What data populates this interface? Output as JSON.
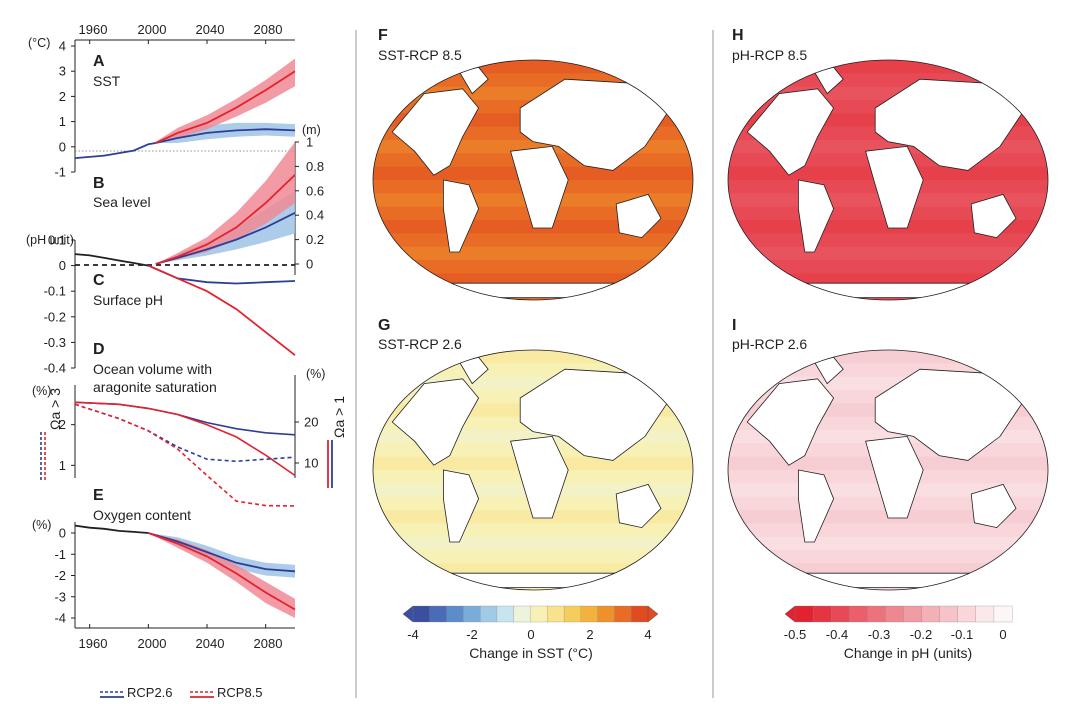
{
  "chart_data": [
    {
      "panel": "A",
      "type": "line",
      "title": "SST",
      "ylabel": "(°C)",
      "ylim": [
        -1,
        4
      ],
      "yticks": [
        -1,
        0,
        1,
        2,
        3,
        4
      ],
      "xlim": [
        1950,
        2100
      ],
      "xticks": [
        1960,
        2000,
        2040,
        2080
      ],
      "historical": {
        "x": [
          1950,
          1960,
          1970,
          1980,
          1990,
          2000,
          2005
        ],
        "y": [
          -0.45,
          -0.4,
          -0.35,
          -0.25,
          -0.15,
          0.1,
          0.15
        ]
      },
      "series": [
        {
          "name": "RCP2.6",
          "color": "#2e3e97",
          "x": [
            2005,
            2020,
            2040,
            2060,
            2080,
            2100
          ],
          "y": [
            0.15,
            0.35,
            0.55,
            0.65,
            0.7,
            0.65
          ],
          "lo": [
            0.15,
            0.15,
            0.3,
            0.4,
            0.45,
            0.4
          ],
          "hi": [
            0.2,
            0.55,
            0.85,
            0.95,
            0.95,
            0.9
          ]
        },
        {
          "name": "RCP8.5",
          "color": "#e3222f",
          "x": [
            2005,
            2020,
            2040,
            2060,
            2080,
            2100
          ],
          "y": [
            0.15,
            0.55,
            0.95,
            1.55,
            2.25,
            3.0
          ],
          "lo": [
            0.15,
            0.35,
            0.7,
            1.2,
            1.75,
            2.4
          ],
          "hi": [
            0.2,
            0.75,
            1.25,
            1.9,
            2.65,
            3.5
          ]
        }
      ]
    },
    {
      "panel": "B",
      "type": "line",
      "title": "Sea level",
      "ylabel": "(m)",
      "ylim": [
        0,
        1
      ],
      "yticks": [
        0,
        0.2,
        0.4,
        0.6,
        0.8,
        1
      ],
      "series": [
        {
          "name": "RCP2.6",
          "color": "#2e3e97",
          "x": [
            2005,
            2020,
            2040,
            2060,
            2080,
            2100
          ],
          "y": [
            0,
            0.05,
            0.12,
            0.2,
            0.3,
            0.42
          ],
          "lo": [
            0,
            0.03,
            0.07,
            0.12,
            0.18,
            0.25
          ],
          "hi": [
            0,
            0.08,
            0.18,
            0.3,
            0.45,
            0.6
          ]
        },
        {
          "name": "RCP8.5",
          "color": "#e3222f",
          "x": [
            2005,
            2020,
            2040,
            2060,
            2080,
            2100
          ],
          "y": [
            0,
            0.06,
            0.16,
            0.3,
            0.5,
            0.73
          ],
          "lo": [
            0,
            0.04,
            0.1,
            0.2,
            0.33,
            0.5
          ],
          "hi": [
            0,
            0.09,
            0.22,
            0.42,
            0.68,
            1.0
          ]
        }
      ]
    },
    {
      "panel": "C",
      "type": "line",
      "title": "Surface pH",
      "ylabel": "(pH unit)",
      "ylim": [
        -0.4,
        0.1
      ],
      "yticks": [
        0.1,
        0,
        -0.1,
        -0.2,
        -0.3,
        -0.4
      ],
      "historical": {
        "x": [
          1950,
          1960,
          1970,
          1980,
          1990,
          2000
        ],
        "y": [
          0.045,
          0.04,
          0.03,
          0.02,
          0.01,
          0.0
        ]
      },
      "series": [
        {
          "name": "RCP2.6",
          "color": "#2e3e97",
          "x": [
            2000,
            2020,
            2040,
            2060,
            2080,
            2100
          ],
          "y": [
            0.0,
            -0.05,
            -0.065,
            -0.07,
            -0.065,
            -0.06
          ]
        },
        {
          "name": "RCP8.5",
          "color": "#e3222f",
          "x": [
            2000,
            2020,
            2040,
            2060,
            2080,
            2100
          ],
          "y": [
            0.0,
            -0.05,
            -0.1,
            -0.17,
            -0.26,
            -0.35
          ]
        }
      ]
    },
    {
      "panel": "D",
      "type": "line",
      "title": "Ocean volume with aragonite saturation",
      "ylabel_left": "(%)",
      "ylabel_right": "(%)",
      "left_label": "Ωa > 3",
      "right_label": "Ωa > 1",
      "ylim_left": [
        0,
        3
      ],
      "yticks_left": [
        1,
        2
      ],
      "yticks_right": [
        10,
        20
      ],
      "series": [
        {
          "name": "RCP2.6 Ωa > 1",
          "color": "#2e3e97",
          "dash": false,
          "x": [
            1950,
            1980,
            2000,
            2020,
            2040,
            2060,
            2080,
            2100
          ],
          "y": [
            2.55,
            2.5,
            2.4,
            2.25,
            2.05,
            1.9,
            1.8,
            1.75
          ]
        },
        {
          "name": "RCP8.5 Ωa > 1",
          "color": "#e3222f",
          "dash": false,
          "x": [
            1950,
            1980,
            2000,
            2020,
            2040,
            2060,
            2080,
            2100
          ],
          "y": [
            2.55,
            2.5,
            2.4,
            2.25,
            2.0,
            1.7,
            1.25,
            0.75
          ]
        },
        {
          "name": "RCP2.6 Ωa > 3",
          "color": "#2e3e97",
          "dash": true,
          "x": [
            1950,
            1980,
            2000,
            2020,
            2040,
            2060,
            2080,
            2100
          ],
          "y": [
            2.5,
            2.15,
            1.85,
            1.45,
            1.15,
            1.1,
            1.15,
            1.2
          ]
        },
        {
          "name": "RCP8.5 Ωa > 3",
          "color": "#e3222f",
          "dash": true,
          "x": [
            1950,
            1980,
            2000,
            2020,
            2040,
            2060,
            2080,
            2100
          ],
          "y": [
            2.5,
            2.15,
            1.85,
            1.4,
            0.75,
            0.12,
            0.01,
            0.0
          ]
        }
      ]
    },
    {
      "panel": "E",
      "type": "line",
      "title": "Oxygen content",
      "ylabel": "(%)",
      "ylim": [
        -4,
        0
      ],
      "yticks": [
        0,
        -1,
        -2,
        -3,
        -4
      ],
      "xlim": [
        1950,
        2100
      ],
      "xticks": [
        1960,
        2000,
        2040,
        2080
      ],
      "historical": {
        "x": [
          1950,
          1960,
          1970,
          1980,
          1990,
          2000
        ],
        "y": [
          0.35,
          0.25,
          0.2,
          0.1,
          0.05,
          0.0
        ]
      },
      "series": [
        {
          "name": "RCP2.6",
          "color": "#2e3e97",
          "x": [
            2000,
            2020,
            2040,
            2060,
            2080,
            2100
          ],
          "y": [
            0.0,
            -0.4,
            -0.9,
            -1.4,
            -1.7,
            -1.8
          ],
          "lo": [
            0,
            -0.6,
            -1.2,
            -1.7,
            -2.0,
            -2.1
          ],
          "hi": [
            0,
            -0.2,
            -0.6,
            -1.1,
            -1.4,
            -1.5
          ]
        },
        {
          "name": "RCP8.5",
          "color": "#e3222f",
          "x": [
            2000,
            2020,
            2040,
            2060,
            2080,
            2100
          ],
          "y": [
            0.0,
            -0.5,
            -1.1,
            -1.9,
            -2.8,
            -3.6
          ],
          "lo": [
            0,
            -0.7,
            -1.4,
            -2.3,
            -3.3,
            -4.0
          ],
          "hi": [
            0,
            -0.3,
            -0.8,
            -1.5,
            -2.3,
            -3.1
          ]
        }
      ]
    },
    {
      "panel": "F",
      "type": "heatmap",
      "title": "SST-RCP 8.5",
      "variable": "SST",
      "scenario": "RCP8.5",
      "level": 0.8
    },
    {
      "panel": "G",
      "type": "heatmap",
      "title": "SST-RCP 2.6",
      "variable": "SST",
      "scenario": "RCP2.6",
      "level": 0.15
    },
    {
      "panel": "H",
      "type": "heatmap",
      "title": "pH-RCP 8.5",
      "variable": "pH",
      "scenario": "RCP8.5",
      "level": 0.85
    },
    {
      "panel": "I",
      "type": "heatmap",
      "title": "pH-RCP 2.6",
      "variable": "pH",
      "scenario": "RCP2.6",
      "level": 0.15
    }
  ],
  "panel_letters": [
    "A",
    "B",
    "C",
    "D",
    "E",
    "F",
    "G",
    "H",
    "I"
  ],
  "x_ticks_top": [
    "1960",
    "2000",
    "2040",
    "2080"
  ],
  "x_ticks_bottom": [
    "1960",
    "2000",
    "2040",
    "2080"
  ],
  "units": {
    "sst": "(°C)",
    "sea_level": "(m)",
    "ph": "(pH unit)",
    "aragonite_left": "(%)",
    "aragonite_right": "(%)",
    "oxygen": "(%)"
  },
  "panel_titles": {
    "A": "SST",
    "B": "Sea level",
    "C": "Surface pH",
    "D_line1": "Ocean volume with",
    "D_line2": "aragonite saturation",
    "E": "Oxygen content"
  },
  "omega_labels": {
    "left": "Ωa > 3",
    "right": "Ωa > 1"
  },
  "map_titles": {
    "F": "SST-RCP 8.5",
    "G": "SST-RCP 2.6",
    "H": "pH-RCP 8.5",
    "I": "pH-RCP 2.6"
  },
  "colorbars": {
    "sst": {
      "label": "Change in SST (°C)",
      "ticks": [
        "-4",
        "-2",
        "0",
        "2",
        "4"
      ],
      "colors": [
        "#3a4fa0",
        "#4a6cb6",
        "#5c8cc9",
        "#7aacd9",
        "#9fcbe6",
        "#c8e4ef",
        "#eef3dc",
        "#f8f1b6",
        "#f8e28c",
        "#f6cc5d",
        "#f3b13d",
        "#ee902c",
        "#e96c26",
        "#e14b22"
      ]
    },
    "ph": {
      "label": "Change in pH (units)",
      "ticks": [
        "-0.5",
        "-0.4",
        "-0.3",
        "-0.2",
        "-0.1",
        "0"
      ],
      "colors": [
        "#e3222f",
        "#e53541",
        "#e74a55",
        "#ea5f69",
        "#ec737c",
        "#ee8890",
        "#f09ca3",
        "#f3b0b6",
        "#f5c3c8",
        "#f8d6da",
        "#fae8ea",
        "#fdf6f7"
      ]
    }
  },
  "legend": [
    {
      "label": "RCP2.6",
      "color": "#2e3e97"
    },
    {
      "label": "RCP8.5",
      "color": "#e3222f"
    }
  ]
}
